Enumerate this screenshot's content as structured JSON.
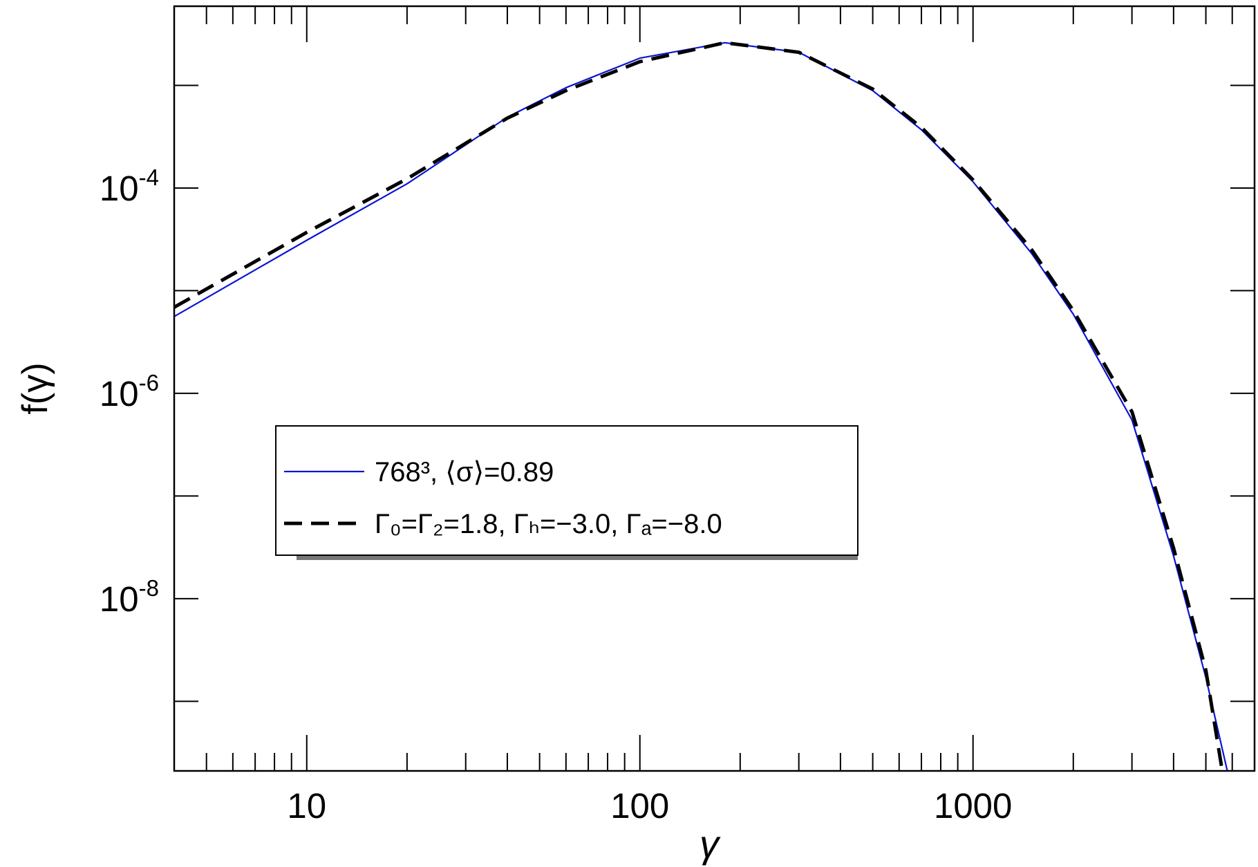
{
  "chart_data": {
    "type": "line",
    "xlabel": "γ",
    "ylabel": "f(γ)",
    "xscale": "log",
    "yscale": "log",
    "xlim": [
      4,
      7000
    ],
    "ylim": [
      2.1e-10,
      0.0059
    ],
    "xticks": [
      10,
      100,
      1000
    ],
    "xticks_minor": [
      5,
      6,
      7,
      8,
      9,
      20,
      30,
      40,
      50,
      60,
      70,
      80,
      90,
      200,
      300,
      400,
      500,
      600,
      700,
      800,
      900,
      2000,
      3000,
      4000,
      5000,
      6000
    ],
    "yticks": [
      {
        "value": 0.001,
        "label": null
      },
      {
        "value": 0.0001,
        "label": {
          "base": "10",
          "exponent": "-4"
        }
      },
      {
        "value": 1e-05,
        "label": null
      },
      {
        "value": 1e-06,
        "label": {
          "base": "10",
          "exponent": "-6"
        }
      },
      {
        "value": 1e-07,
        "label": null
      },
      {
        "value": 1e-08,
        "label": {
          "base": "10",
          "exponent": "-8"
        }
      },
      {
        "value": 1e-09,
        "label": null
      }
    ],
    "legend": "center-left",
    "series": [
      {
        "name": "768³, ⟨σ⟩=0.89",
        "color": "#0a14d2",
        "style": "solid",
        "x": [
          4,
          10,
          20,
          40,
          60,
          100,
          180,
          300,
          500,
          700,
          1000,
          1500,
          2000,
          3000,
          4000,
          5000,
          5800
        ],
        "values": [
          5.6e-06,
          3.1e-05,
          0.00011,
          0.00049,
          0.00095,
          0.00184,
          0.0026,
          0.0021,
          0.00089,
          0.00037,
          0.000115,
          2.3e-05,
          5.9e-06,
          5.5e-07,
          2.6e-08,
          1.7e-09,
          2.1e-10
        ]
      },
      {
        "name": "Γ₀=Γ₂=1.8, Γₕ=−3.0, Γₐ=−8.0",
        "color": "#000000",
        "style": "dashed",
        "x": [
          4,
          10,
          20,
          40,
          60,
          100,
          180,
          300,
          500,
          700,
          1000,
          1500,
          2000,
          3000,
          4000,
          5000,
          5600
        ],
        "values": [
          6.9e-06,
          3.7e-05,
          0.000123,
          0.00048,
          0.00089,
          0.0017,
          0.0026,
          0.0021,
          0.00092,
          0.00039,
          0.00012,
          2.5e-05,
          6.4e-06,
          6.6e-07,
          3.1e-08,
          2e-09,
          2.1e-10
        ]
      }
    ]
  }
}
